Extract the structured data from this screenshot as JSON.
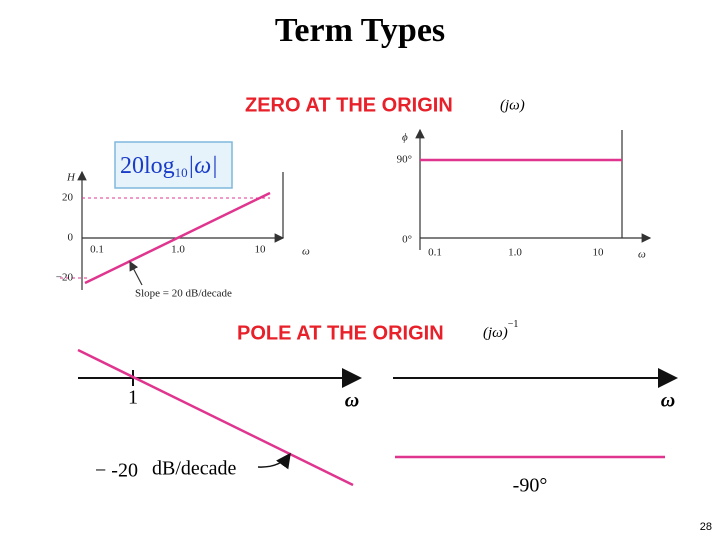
{
  "title": "Term Types",
  "zero": {
    "heading": "ZERO AT THE ORIGIN",
    "term": "(jω)",
    "formula": {
      "main": "20log",
      "sub": "10",
      "arg": "|ω|"
    },
    "magnitude": {
      "y_label": "H",
      "y_ticks": [
        "20",
        "0",
        "−20"
      ],
      "x_ticks": [
        "0.1",
        "1.0",
        "10"
      ],
      "x_label": "ω",
      "annotation": "Slope = 20 dB/decade"
    },
    "phase": {
      "y_label": "ϕ",
      "y_ticks": [
        "90°",
        "0°"
      ],
      "x_ticks": [
        "0.1",
        "1.0",
        "10"
      ],
      "x_label": "ω"
    }
  },
  "pole": {
    "heading": "POLE AT THE ORIGIN",
    "term": "(jω)",
    "exponent": "−1",
    "magnitude": {
      "tick": "1",
      "x_label": "ω",
      "annotation_value": "− -20",
      "annotation_unit": "dB/decade"
    },
    "phase": {
      "x_label": "ω",
      "value": "-90°"
    }
  },
  "page_number": "28"
}
